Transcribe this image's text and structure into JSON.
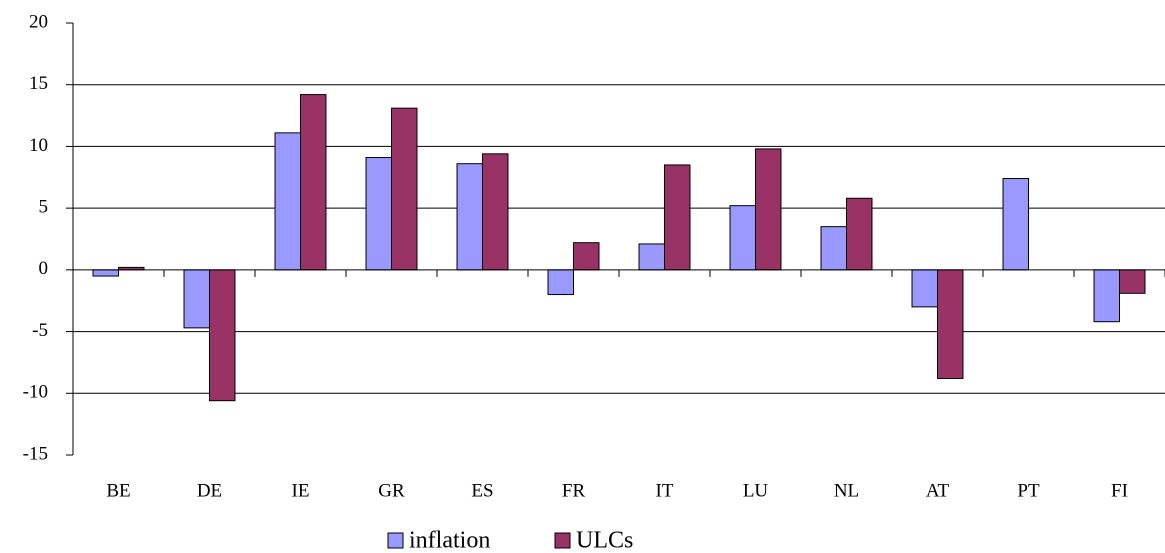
{
  "chart_data": {
    "type": "bar",
    "categories": [
      "BE",
      "DE",
      "IE",
      "GR",
      "ES",
      "FR",
      "IT",
      "LU",
      "NL",
      "AT",
      "PT",
      "FI"
    ],
    "series": [
      {
        "name": "inflation",
        "color": "#9999ff",
        "values": [
          -0.5,
          -4.7,
          11.1,
          9.1,
          8.6,
          -2.0,
          2.1,
          5.2,
          3.5,
          -3.0,
          7.4,
          -4.2
        ]
      },
      {
        "name": "ULCs",
        "color": "#993366",
        "values": [
          0.2,
          -10.6,
          14.2,
          13.1,
          9.4,
          2.2,
          8.5,
          9.8,
          5.8,
          -8.8,
          null,
          -1.9
        ]
      }
    ],
    "ylim": [
      -15,
      20
    ],
    "yticks": [
      -15,
      -10,
      -5,
      0,
      5,
      10,
      15,
      20
    ],
    "grid": true
  }
}
